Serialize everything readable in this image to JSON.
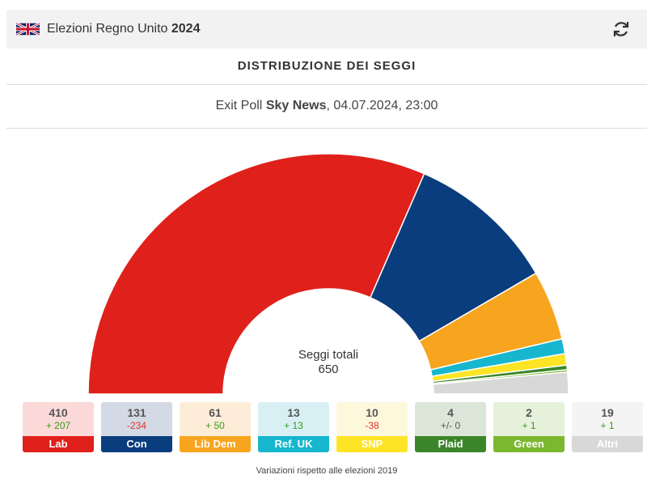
{
  "header": {
    "title_prefix": "Elezioni Regno Unito",
    "title_year": "2024",
    "flag_icon": "uk-flag-icon",
    "refresh_icon": "refresh-icon"
  },
  "heading": "DISTRIBUZIONE DEI SEGGI",
  "subtitle": {
    "prefix": "Exit Poll ",
    "source": "Sky News",
    "suffix": ", 04.07.2024, 23:00"
  },
  "center": {
    "label": "Seggi totali",
    "total": "650"
  },
  "footer": "Variazioni rispetto alle elezioni 2019",
  "chart_data": {
    "type": "pie",
    "variant": "half-donut",
    "total": 650,
    "series": [
      {
        "name": "Lab",
        "seats": 410,
        "change": "+ 207",
        "color": "#e0201b",
        "tint": "#fbd9d8",
        "change_color": "#3a9a1a"
      },
      {
        "name": "Con",
        "seats": 131,
        "change": "-234",
        "color": "#0a3d7d",
        "tint": "#d3dae5",
        "change_color": "#e03030"
      },
      {
        "name": "Lib Dem",
        "seats": 61,
        "change": "+ 50",
        "color": "#f7a51e",
        "tint": "#fdedd8",
        "change_color": "#3a9a1a"
      },
      {
        "name": "Ref. UK",
        "seats": 13,
        "change": "+ 13",
        "color": "#16b6cf",
        "tint": "#d8f0f4",
        "change_color": "#3a9a1a"
      },
      {
        "name": "SNP",
        "seats": 10,
        "change": "-38",
        "color": "#fde425",
        "tint": "#fdf8dc",
        "change_color": "#e03030"
      },
      {
        "name": "Plaid",
        "seats": 4,
        "change": "+/- 0",
        "color": "#3b862a",
        "tint": "#dce6d8",
        "change_color": "#555555"
      },
      {
        "name": "Green",
        "seats": 2,
        "change": "+ 1",
        "color": "#7cb82f",
        "tint": "#e5f1da",
        "change_color": "#3a9a1a"
      },
      {
        "name": "Altri",
        "seats": 19,
        "change": "+ 1",
        "color": "#d8d8d8",
        "tint": "#f4f4f4",
        "change_color": "#3a9a1a"
      }
    ]
  }
}
